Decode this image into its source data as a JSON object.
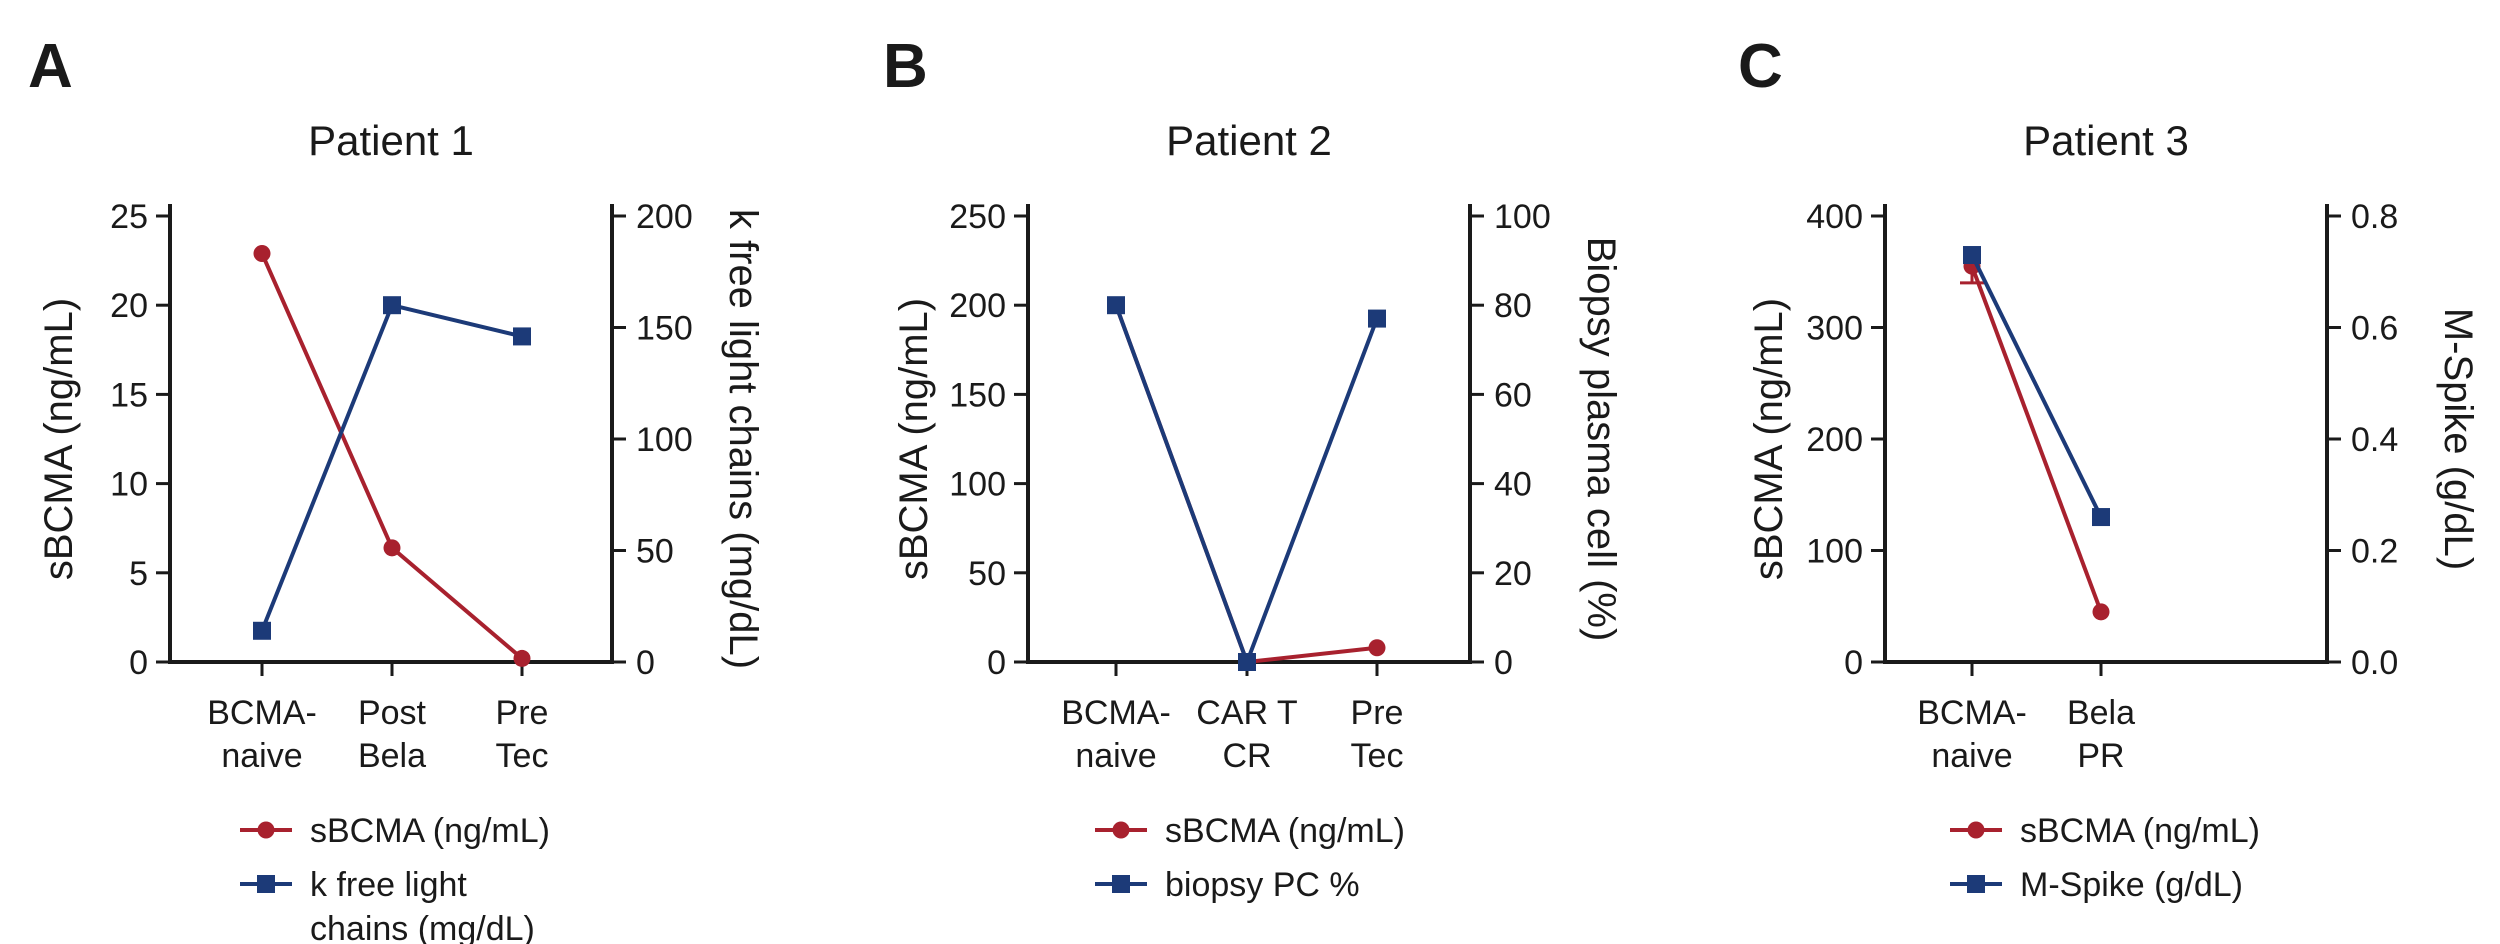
{
  "colors": {
    "sbcma": "#a8212e",
    "secondary": "#1c3a78",
    "axis": "#1a1a1a"
  },
  "chart_data": [
    {
      "type": "line",
      "panel_letter": "A",
      "title": "Patient 1",
      "categories": [
        [
          "BCMA-",
          "naive"
        ],
        [
          "Post",
          "Bela"
        ],
        [
          "Pre",
          "Tec"
        ]
      ],
      "ylabel_left": "sBCMA (ng/mL)",
      "ylabel_right": "k free light chains (mg/dL)",
      "ylim_left": [
        0,
        25
      ],
      "yticks_left": [
        0,
        5,
        10,
        15,
        20,
        25
      ],
      "ylim_right": [
        0,
        200
      ],
      "yticks_right": [
        0,
        50,
        100,
        150,
        200
      ],
      "grid": false,
      "series": [
        {
          "name": "sBCMA (ng/mL)",
          "axis": "left",
          "marker": "circle",
          "values": [
            22.9,
            6.4,
            0.2
          ]
        },
        {
          "name": "k free light chains (mg/dL)",
          "legend_lines": [
            "k free light",
            "chains (mg/dL)"
          ],
          "axis": "right",
          "marker": "square",
          "values": [
            14,
            160,
            146
          ]
        }
      ]
    },
    {
      "type": "line",
      "panel_letter": "B",
      "title": "Patient 2",
      "categories": [
        [
          "BCMA-",
          "naive"
        ],
        [
          "CAR T",
          "CR"
        ],
        [
          "Pre",
          "Tec"
        ]
      ],
      "ylabel_left": "sBCMA (ng/mL)",
      "ylabel_right": "Biopsy plasma cell (%)",
      "ylim_left": [
        0,
        250
      ],
      "yticks_left": [
        0,
        50,
        100,
        150,
        200,
        250
      ],
      "ylim_right": [
        0,
        100
      ],
      "yticks_right": [
        0,
        20,
        40,
        60,
        80,
        100
      ],
      "grid": false,
      "series": [
        {
          "name": "sBCMA (ng/mL)",
          "axis": "left",
          "marker": "circle",
          "values": [
            200,
            0,
            8
          ]
        },
        {
          "name": "biopsy PC %",
          "legend_lines": [
            "biopsy PC %"
          ],
          "axis": "right",
          "marker": "square",
          "values": [
            80,
            0,
            77
          ]
        }
      ]
    },
    {
      "type": "line",
      "panel_letter": "C",
      "title": "Patient 3",
      "categories": [
        [
          "BCMA-",
          "naive"
        ],
        [
          "Bela",
          "PR"
        ]
      ],
      "ylabel_left": "sBCMA (ng/mL)",
      "ylabel_right": "M-Spike (g/dL)",
      "ylim_left": [
        0,
        400
      ],
      "yticks_left": [
        0,
        100,
        200,
        300,
        400
      ],
      "ylim_right": [
        0,
        0.8
      ],
      "yticks_right": [
        "0.0",
        "0.2",
        "0.4",
        "0.6",
        "0.8"
      ],
      "grid": false,
      "series": [
        {
          "name": "sBCMA (ng/mL)",
          "axis": "left",
          "marker": "circle",
          "values": [
            355,
            45
          ],
          "error": [
            15,
            0
          ]
        },
        {
          "name": "M-Spike (g/dL)",
          "legend_lines": [
            "M-Spike (g/dL)"
          ],
          "axis": "right",
          "marker": "square",
          "values": [
            0.73,
            0.26
          ]
        }
      ]
    }
  ]
}
